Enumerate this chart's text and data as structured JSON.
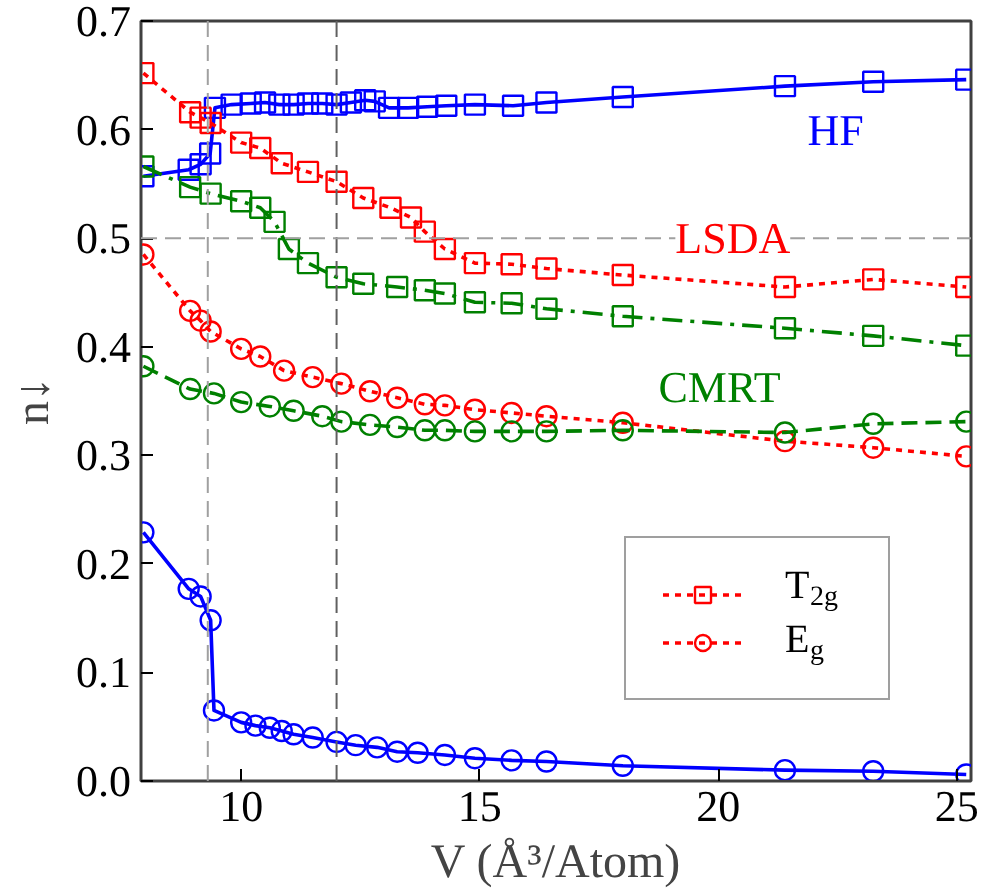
{
  "chart_data": {
    "type": "line",
    "xlabel": "V (Å³/Atom)",
    "ylabel": "n↓",
    "xlim": [
      7.9,
      25.3
    ],
    "ylim": [
      0,
      0.7
    ],
    "xticks": [
      10,
      15,
      20,
      25
    ],
    "yticks": [
      {
        "value": 0,
        "label": "0.0"
      },
      {
        "value": 0.1,
        "label": "0.1"
      },
      {
        "value": 0.2,
        "label": "0.2"
      },
      {
        "value": 0.3,
        "label": "0.3"
      },
      {
        "value": 0.4,
        "label": "0.4"
      },
      {
        "value": 0.5,
        "label": "0.5"
      },
      {
        "value": 0.6,
        "label": "0.6"
      },
      {
        "value": 0.7,
        "label": "0.7"
      }
    ],
    "grid": false,
    "legend": "bottom right",
    "ref_lines": [
      {
        "axis": "x",
        "value": 9.3,
        "color": "#a0a0a0",
        "line_style": "dashed"
      },
      {
        "axis": "x",
        "value": 12.0,
        "color": "#606060",
        "line_style": "dashed"
      },
      {
        "axis": "y",
        "value": 0.5,
        "color": "#a0a0a0",
        "line_style": "dashed"
      }
    ],
    "annotations": [
      "HF",
      "LSDA",
      "CMRT"
    ],
    "series": [
      {
        "color": "#0000ff",
        "marker": "square",
        "line_style": "solid",
        "x": [
          7.95,
          8.9,
          9.15,
          9.35,
          9.45,
          9.8,
          10.2,
          10.5,
          10.8,
          11.1,
          11.4,
          11.7,
          12.0,
          12.3,
          12.6,
          12.8,
          13.1,
          13.5,
          13.9,
          14.3,
          14.9,
          15.7,
          16.4,
          18.0,
          21.4,
          23.25,
          25.2
        ],
        "values": [
          0.557,
          0.563,
          0.568,
          0.578,
          0.62,
          0.623,
          0.624,
          0.625,
          0.623,
          0.623,
          0.624,
          0.624,
          0.623,
          0.625,
          0.627,
          0.626,
          0.62,
          0.62,
          0.621,
          0.622,
          0.623,
          0.622,
          0.625,
          0.63,
          0.64,
          0.644,
          0.646
        ]
      },
      {
        "color": "#0000ff",
        "marker": "circle",
        "line_style": "solid",
        "x": [
          7.95,
          8.9,
          9.15,
          9.36,
          9.43,
          10.0,
          10.3,
          10.6,
          10.85,
          11.1,
          11.5,
          12.0,
          12.4,
          12.85,
          13.27,
          13.7,
          14.27,
          14.9,
          15.67,
          16.4,
          18.0,
          21.4,
          23.25,
          25.2
        ],
        "values": [
          0.229,
          0.177,
          0.17,
          0.148,
          0.065,
          0.054,
          0.051,
          0.049,
          0.046,
          0.043,
          0.04,
          0.036,
          0.033,
          0.031,
          0.027,
          0.026,
          0.024,
          0.021,
          0.019,
          0.018,
          0.014,
          0.01,
          0.009,
          0.006
        ]
      },
      {
        "name": "T$_{2g}$",
        "color": "#ff0000",
        "marker": "square",
        "line_style": "dotted",
        "x": [
          7.95,
          8.93,
          9.15,
          9.36,
          10.0,
          10.4,
          10.85,
          11.4,
          12.0,
          12.56,
          13.13,
          13.56,
          13.85,
          14.27,
          14.9,
          15.67,
          16.4,
          18.0,
          21.4,
          23.25,
          25.2
        ],
        "values": [
          0.652,
          0.616,
          0.611,
          0.606,
          0.588,
          0.583,
          0.569,
          0.561,
          0.552,
          0.537,
          0.528,
          0.519,
          0.506,
          0.49,
          0.477,
          0.476,
          0.472,
          0.466,
          0.455,
          0.462,
          0.455
        ]
      },
      {
        "name": "E$_{g}$",
        "color": "#ff0000",
        "marker": "circle",
        "line_style": "dotted",
        "x": [
          7.95,
          8.93,
          9.15,
          9.36,
          10.0,
          10.4,
          10.9,
          11.5,
          12.1,
          12.7,
          13.27,
          13.85,
          14.27,
          14.9,
          15.67,
          16.4,
          18.0,
          21.4,
          23.25,
          25.2
        ],
        "values": [
          0.485,
          0.433,
          0.424,
          0.414,
          0.398,
          0.391,
          0.378,
          0.372,
          0.366,
          0.359,
          0.353,
          0.347,
          0.346,
          0.342,
          0.339,
          0.336,
          0.33,
          0.313,
          0.307,
          0.299
        ]
      },
      {
        "color": "#008000",
        "marker": "square",
        "line_style": "dashdot",
        "x": [
          7.95,
          8.93,
          9.36,
          10.0,
          10.4,
          10.7,
          11.0,
          11.4,
          12.0,
          12.56,
          13.27,
          13.85,
          14.27,
          14.9,
          15.67,
          16.4,
          18.0,
          21.4,
          23.25,
          25.2
        ],
        "values": [
          0.566,
          0.547,
          0.541,
          0.534,
          0.528,
          0.515,
          0.49,
          0.477,
          0.464,
          0.458,
          0.455,
          0.452,
          0.449,
          0.441,
          0.44,
          0.435,
          0.428,
          0.417,
          0.41,
          0.401
        ]
      },
      {
        "color": "#008000",
        "marker": "circle",
        "line_style": "dashed",
        "x": [
          7.95,
          8.93,
          9.43,
          10.0,
          10.6,
          11.1,
          11.7,
          12.1,
          12.7,
          13.27,
          13.85,
          14.27,
          14.9,
          15.67,
          16.4,
          18.0,
          21.4,
          23.25,
          25.2
        ],
        "values": [
          0.382,
          0.361,
          0.357,
          0.349,
          0.345,
          0.341,
          0.336,
          0.331,
          0.328,
          0.326,
          0.323,
          0.323,
          0.322,
          0.322,
          0.322,
          0.323,
          0.321,
          0.329,
          0.331
        ]
      }
    ]
  }
}
